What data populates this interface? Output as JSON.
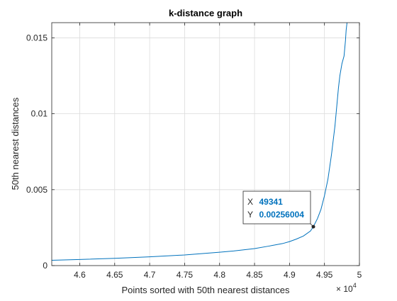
{
  "chart_data": {
    "type": "line",
    "title": "k-distance graph",
    "xlabel": "Points sorted with 50th nearest distances",
    "ylabel": "50th nearest distances",
    "xlim": [
      45600,
      50000
    ],
    "ylim": [
      0,
      0.016
    ],
    "x_exponent_label": "× 10",
    "x_exponent_power": "4",
    "xticks": [
      46000,
      46500,
      47000,
      47500,
      48000,
      48500,
      49000,
      49500,
      50000
    ],
    "xtick_labels": [
      "4.6",
      "4.65",
      "4.7",
      "4.75",
      "4.8",
      "4.85",
      "4.9",
      "4.95",
      "5"
    ],
    "yticks": [
      0,
      0.005,
      0.01,
      0.015
    ],
    "ytick_labels": [
      "0",
      "0.005",
      "0.01",
      "0.015"
    ],
    "grid": true,
    "line_color": "#0072bd",
    "series": [
      {
        "x": [
          45600,
          46000,
          46500,
          47000,
          47500,
          48000,
          48200,
          48500,
          48700,
          48900,
          49000,
          49100,
          49200,
          49300,
          49341,
          49400,
          49450,
          49500,
          49550,
          49600,
          49650,
          49700,
          49720,
          49750,
          49780,
          49800,
          49810,
          49830,
          49850
        ],
        "y": [
          0.00035,
          0.0004,
          0.00048,
          0.00058,
          0.0007,
          0.00088,
          0.00096,
          0.00112,
          0.00128,
          0.00145,
          0.00158,
          0.00175,
          0.00195,
          0.00228,
          0.00256,
          0.0031,
          0.0037,
          0.0046,
          0.0057,
          0.0073,
          0.0092,
          0.0117,
          0.0125,
          0.0133,
          0.0138,
          0.0148,
          0.0155,
          0.0163,
          0.0175
        ]
      }
    ],
    "datatip": {
      "x_label": "X",
      "x_value": "49341",
      "y_label": "Y",
      "y_value": "0.00256004",
      "x": 49341,
      "y": 0.00256004
    }
  }
}
